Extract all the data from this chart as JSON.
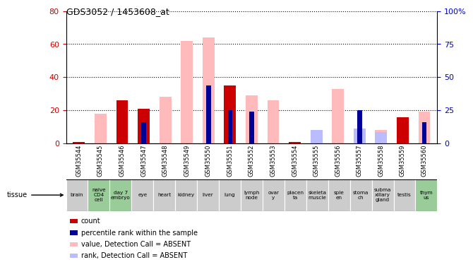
{
  "title": "GDS3052 / 1453608_at",
  "samples": [
    "GSM35544",
    "GSM35545",
    "GSM35546",
    "GSM35547",
    "GSM35548",
    "GSM35549",
    "GSM35550",
    "GSM35551",
    "GSM35552",
    "GSM35553",
    "GSM35554",
    "GSM35555",
    "GSM35556",
    "GSM35557",
    "GSM35558",
    "GSM35559",
    "GSM35560"
  ],
  "tissues": [
    "brain",
    "naive\nCD4\ncell",
    "day 7\nembryо",
    "eye",
    "heart",
    "kidney",
    "liver",
    "lung",
    "lymph\nnode",
    "ovar\ny",
    "placen\nta",
    "skeleta\nmuscle",
    "sple\nen",
    "stoma\nch",
    "subma\nxillary\ngland",
    "testis",
    "thym\nus"
  ],
  "tissue_green": [
    false,
    true,
    true,
    false,
    false,
    false,
    false,
    false,
    false,
    false,
    false,
    false,
    false,
    false,
    false,
    false,
    true
  ],
  "count": [
    1,
    0,
    26,
    21,
    0,
    0,
    0,
    35,
    0,
    0,
    1,
    0,
    0,
    0,
    0,
    16,
    0
  ],
  "percentile_rank": [
    0,
    0,
    0,
    13,
    0,
    0,
    35,
    20,
    19,
    0,
    0,
    0,
    0,
    20,
    0,
    0,
    13
  ],
  "value_absent": [
    0,
    18,
    0,
    0,
    28,
    62,
    64,
    0,
    29,
    26,
    0,
    0,
    33,
    9,
    8,
    0,
    19
  ],
  "rank_absent": [
    0,
    0,
    0,
    0,
    0,
    0,
    0,
    0,
    0,
    0,
    0,
    8,
    0,
    9,
    7,
    0,
    0
  ],
  "ylim_left": [
    0,
    80
  ],
  "ylim_right": [
    0,
    100
  ],
  "yticks_left": [
    0,
    20,
    40,
    60,
    80
  ],
  "yticks_right": [
    0,
    25,
    50,
    75,
    100
  ],
  "bar_width": 0.55,
  "color_count": "#cc0000",
  "color_percentile": "#000099",
  "color_value_absent": "#ffbbbb",
  "color_rank_absent": "#bbbbff",
  "bg_tissue_gray": "#cccccc",
  "bg_tissue_green": "#99cc99",
  "bg_xlabel": "#c8c8c8"
}
